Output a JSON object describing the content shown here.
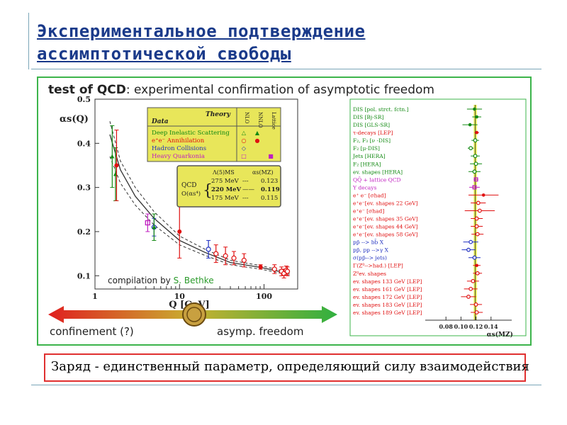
{
  "slide": {
    "title_line1": "Экспериментальное подтверждение",
    "title_line2": "ассимптотической свободы",
    "footer": "Заряд - единственный параметр, определяющий силу взаимодействия"
  },
  "colors": {
    "title": "#1a3a8a",
    "panel_border": "#3cb44b",
    "footer_border": "#e03030",
    "legend_bg": "#e8e65a",
    "band": "#e6ee50"
  },
  "chart_data": [
    {
      "type": "scatter",
      "title": "test of QCD: experimental confirmation of asymptotic freedom",
      "title_bold": "test of QCD",
      "title_rest": ": experimental confirmation of asymptotic freedom",
      "ylabel": "αs(Q)",
      "xlabel": "Q [GeV]",
      "x_scale": "log",
      "xlim": [
        1,
        250
      ],
      "ylim": [
        0.07,
        0.5
      ],
      "y_ticks": [
        {
          "v": 0.1,
          "label": "0.1"
        },
        {
          "v": 0.2,
          "label": "0.2"
        },
        {
          "v": 0.3,
          "label": "0.3"
        },
        {
          "v": 0.4,
          "label": "0.4"
        },
        {
          "v": 0.5,
          "label": "0.5"
        }
      ],
      "x_ticks": [
        {
          "v": 1,
          "label": "1"
        },
        {
          "v": 10,
          "label": "10"
        },
        {
          "v": 100,
          "label": "100"
        }
      ],
      "curves": [
        {
          "lambda": 275,
          "style": "dashed",
          "values": [
            [
              1.5,
              0.45
            ],
            [
              2,
              0.36
            ],
            [
              3,
              0.3
            ],
            [
              5,
              0.245
            ],
            [
              10,
              0.19
            ],
            [
              20,
              0.16
            ],
            [
              40,
              0.135
            ],
            [
              91,
              0.123
            ],
            [
              200,
              0.108
            ]
          ]
        },
        {
          "lambda": 220,
          "style": "solid",
          "values": [
            [
              1.5,
              0.42
            ],
            [
              2,
              0.34
            ],
            [
              3,
              0.28
            ],
            [
              5,
              0.23
            ],
            [
              10,
              0.18
            ],
            [
              20,
              0.153
            ],
            [
              40,
              0.13
            ],
            [
              91,
              0.119
            ],
            [
              200,
              0.105
            ]
          ]
        },
        {
          "lambda": 175,
          "style": "dashed",
          "values": [
            [
              1.5,
              0.37
            ],
            [
              2,
              0.31
            ],
            [
              3,
              0.26
            ],
            [
              5,
              0.215
            ],
            [
              10,
              0.17
            ],
            [
              20,
              0.146
            ],
            [
              40,
              0.125
            ],
            [
              91,
              0.115
            ],
            [
              200,
              0.102
            ]
          ]
        }
      ],
      "points": [
        {
          "x": 1.6,
          "y": 0.37,
          "err": 0.07,
          "color": "#138a13",
          "shape": "tri"
        },
        {
          "x": 1.75,
          "y": 0.33,
          "err": 0.06,
          "color": "#138a13",
          "shape": "tri"
        },
        {
          "x": 1.8,
          "y": 0.35,
          "err": 0.08,
          "color": "#e01010",
          "shape": "dot"
        },
        {
          "x": 4.2,
          "y": 0.22,
          "err": 0.02,
          "color": "#c020c0",
          "shape": "sq"
        },
        {
          "x": 5,
          "y": 0.21,
          "err": 0.02,
          "color": "#2030c0",
          "shape": "circle"
        },
        {
          "x": 5,
          "y": 0.21,
          "err": 0.03,
          "color": "#138a13",
          "shape": "tri"
        },
        {
          "x": 10,
          "y": 0.2,
          "err": 0.06,
          "color": "#e01010",
          "shape": "dot"
        },
        {
          "x": 22,
          "y": 0.16,
          "err": 0.02,
          "color": "#2030c0",
          "shape": "circle"
        },
        {
          "x": 27,
          "y": 0.15,
          "err": 0.02,
          "color": "#e01010",
          "shape": "circle"
        },
        {
          "x": 35,
          "y": 0.145,
          "err": 0.02,
          "color": "#e01010",
          "shape": "circle"
        },
        {
          "x": 44,
          "y": 0.14,
          "err": 0.015,
          "color": "#e01010",
          "shape": "circle"
        },
        {
          "x": 58,
          "y": 0.135,
          "err": 0.015,
          "color": "#e01010",
          "shape": "circle"
        },
        {
          "x": 91,
          "y": 0.12,
          "err": 0.005,
          "color": "#e01010",
          "shape": "dot"
        },
        {
          "x": 133,
          "y": 0.115,
          "err": 0.01,
          "color": "#e01010",
          "shape": "circle"
        },
        {
          "x": 161,
          "y": 0.11,
          "err": 0.01,
          "color": "#e01010",
          "shape": "circle"
        },
        {
          "x": 172,
          "y": 0.105,
          "err": 0.01,
          "color": "#e01010",
          "shape": "circle"
        },
        {
          "x": 183,
          "y": 0.112,
          "err": 0.01,
          "color": "#e01010",
          "shape": "circle"
        },
        {
          "x": 189,
          "y": 0.11,
          "err": 0.01,
          "color": "#e01010",
          "shape": "circle"
        }
      ],
      "legend": {
        "header_data": "Data",
        "header_theory": "Theory",
        "columns": [
          "NLO",
          "NNLO",
          "Lattice"
        ],
        "rows": [
          {
            "label": "Deep Inelastic Scattering",
            "color": "#138a13",
            "marks": [
              "△",
              "▲",
              ""
            ]
          },
          {
            "label": "e⁺e⁻ Annihilation",
            "color": "#e01010",
            "marks": [
              "○",
              "●",
              ""
            ]
          },
          {
            "label": "Hadron Collisions",
            "color": "#2030c0",
            "marks": [
              "◇",
              "",
              ""
            ]
          },
          {
            "label": "Heavy Quarkonia",
            "color": "#c020c0",
            "marks": [
              "□",
              "",
              "■"
            ]
          }
        ]
      },
      "lambda_box": {
        "qcd": "QCD",
        "order": "O(αs⁴)",
        "col1": "Λ(5)MS",
        "col2": "αs(MZ)",
        "rows": [
          {
            "lambda": "275 MeV",
            "style": "---",
            "alpha": "0.123"
          },
          {
            "lambda": "220 MeV",
            "style": "——",
            "alpha": "0.119"
          },
          {
            "lambda": "175 MeV",
            "style": "---",
            "alpha": "0.115"
          }
        ]
      },
      "compilation": "compilation by",
      "compilation_author": "S. Bethke",
      "arrow_left": "confinement (?)",
      "arrow_right": "asymp. freedom"
    },
    {
      "type": "scatter",
      "xlabel": "αs(MZ)",
      "xlim": [
        0.06,
        0.16
      ],
      "x_ticks": [
        {
          "v": 0.08,
          "label": "0.08"
        },
        {
          "v": 0.1,
          "label": "0.10"
        },
        {
          "v": 0.12,
          "label": "0.12"
        },
        {
          "v": 0.14,
          "label": "0.14"
        }
      ],
      "band": [
        0.117,
        0.121
      ],
      "central": 0.119,
      "rows": [
        {
          "label": "DIS [pol. strct. fctn.]",
          "color": "#138a13",
          "x": 0.118,
          "err": 0.01,
          "shape": "dot"
        },
        {
          "label": "DIS [Bj-SR]",
          "color": "#138a13",
          "x": 0.121,
          "err": 0.006,
          "shape": "dot"
        },
        {
          "label": "DIS [GLS-SR]",
          "color": "#138a13",
          "x": 0.112,
          "err": 0.01,
          "shape": "dot"
        },
        {
          "label": "τ-decays [LEP]",
          "color": "#e01010",
          "x": 0.121,
          "err": 0.003,
          "shape": "dot"
        },
        {
          "label": "F₂, F₃ [ν -DIS]",
          "color": "#138a13",
          "x": 0.119,
          "err": 0.005,
          "shape": "circle"
        },
        {
          "label": "F₂ [μ-DIS]",
          "color": "#138a13",
          "x": 0.113,
          "err": 0.004,
          "shape": "circle"
        },
        {
          "label": "Jets [HERA]",
          "color": "#138a13",
          "x": 0.119,
          "err": 0.006,
          "shape": "circle"
        },
        {
          "label": "F₂ [HERA]",
          "color": "#138a13",
          "x": 0.12,
          "err": 0.008,
          "shape": "circle"
        },
        {
          "label": "ev. shapes [HERA]",
          "color": "#138a13",
          "x": 0.118,
          "err": 0.008,
          "shape": "circle"
        },
        {
          "label": "QQ̄ + lattice QCD",
          "color": "#c020c0",
          "x": 0.12,
          "err": 0.003,
          "shape": "sq"
        },
        {
          "label": "Υ decays",
          "color": "#c020c0",
          "x": 0.118,
          "err": 0.007,
          "shape": "sq"
        },
        {
          "label": "e⁺ e⁻ [σhad]",
          "color": "#e01010",
          "x": 0.13,
          "err": 0.02,
          "shape": "dot"
        },
        {
          "label": "e⁺e⁻[ev. shapes 22 GeV]",
          "color": "#e01010",
          "x": 0.123,
          "err": 0.01,
          "shape": "circle"
        },
        {
          "label": "e⁺e⁻ [σhad]",
          "color": "#e01010",
          "x": 0.125,
          "err": 0.02,
          "shape": "circle"
        },
        {
          "label": "e⁺e⁻[ev. shapes 35 GeV]",
          "color": "#e01010",
          "x": 0.121,
          "err": 0.008,
          "shape": "circle"
        },
        {
          "label": "e⁺e⁻[ev. shapes 44 GeV]",
          "color": "#e01010",
          "x": 0.121,
          "err": 0.008,
          "shape": "circle"
        },
        {
          "label": "e⁺e⁻[ev. shapes 58 GeV]",
          "color": "#e01010",
          "x": 0.122,
          "err": 0.008,
          "shape": "circle"
        },
        {
          "label": "pp̄ --> bb̄ X",
          "color": "#2030c0",
          "x": 0.113,
          "err": 0.01,
          "shape": "circle"
        },
        {
          "label": "pp̄, pp -->γ X",
          "color": "#2030c0",
          "x": 0.11,
          "err": 0.009,
          "shape": "circle"
        },
        {
          "label": "σ(pp̄--> jets)",
          "color": "#2030c0",
          "x": 0.118,
          "err": 0.008,
          "shape": "circle"
        },
        {
          "label": "Γ(Z⁰-->had.) [LEP]",
          "color": "#e01010",
          "x": 0.121,
          "err": 0.005,
          "shape": "dot"
        },
        {
          "label": "Z⁰ev. shapes",
          "color": "#e01010",
          "x": 0.122,
          "err": 0.006,
          "shape": "circle"
        },
        {
          "label": "ev. shapes 133 GeV [LEP]",
          "color": "#e01010",
          "x": 0.116,
          "err": 0.008,
          "shape": "circle"
        },
        {
          "label": "ev. shapes 161 GeV [LEP]",
          "color": "#e01010",
          "x": 0.113,
          "err": 0.009,
          "shape": "circle"
        },
        {
          "label": "ev. shapes 172 GeV [LEP]",
          "color": "#e01010",
          "x": 0.11,
          "err": 0.01,
          "shape": "circle"
        },
        {
          "label": "ev. shapes 183 GeV [LEP]",
          "color": "#e01010",
          "x": 0.12,
          "err": 0.008,
          "shape": "circle"
        },
        {
          "label": "ev. shapes 189 GeV [LEP]",
          "color": "#e01010",
          "x": 0.121,
          "err": 0.008,
          "shape": "circle"
        }
      ]
    }
  ]
}
